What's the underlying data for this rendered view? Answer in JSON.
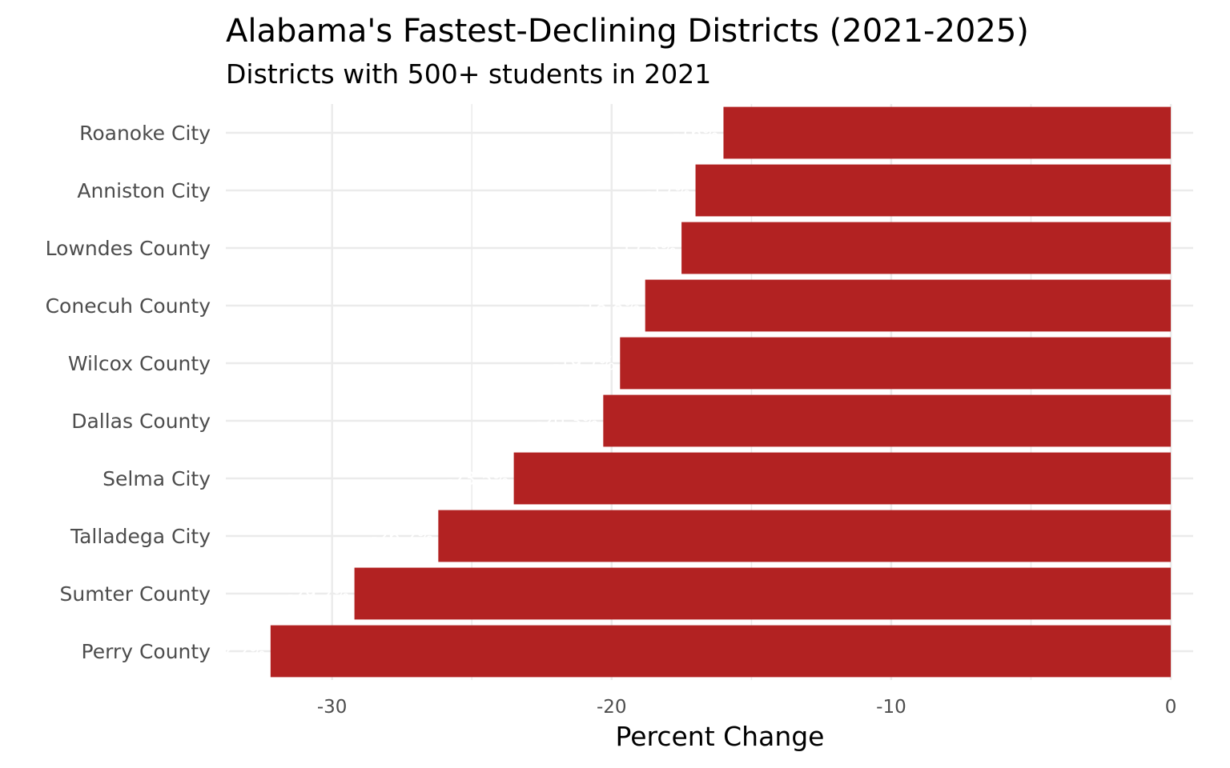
{
  "chart_data": {
    "type": "bar",
    "orientation": "horizontal",
    "title": "Alabama's Fastest-Declining Districts (2021-2025)",
    "subtitle": "Districts with 500+ students in 2021",
    "xlabel": "Percent Change",
    "ylabel": "",
    "categories": [
      "Roanoke City",
      "Anniston City",
      "Lowndes County",
      "Conecuh County",
      "Wilcox County",
      "Dallas County",
      "Selma City",
      "Talladega City",
      "Sumter County",
      "Perry County"
    ],
    "values": [
      -16.0,
      -17.0,
      -17.5,
      -18.8,
      -19.7,
      -20.3,
      -23.5,
      -26.2,
      -29.2,
      -32.2
    ],
    "data_labels": [
      "-16%",
      "-17%",
      "-17.5%",
      "-18.8%",
      "-19.7%",
      "-20.3%",
      "-23.5%",
      "-26.2%",
      "-29.2%",
      "-32.2%"
    ],
    "xlim": [
      -33.8,
      0.8
    ],
    "xticks": [
      -30,
      -20,
      -10,
      0
    ],
    "xtick_labels": [
      "-30",
      "-20",
      "-10",
      "0"
    ],
    "grid": true,
    "colors": {
      "bar": "#B22222",
      "grid": "#EBEBEB",
      "label": "#FFFFFF"
    }
  }
}
